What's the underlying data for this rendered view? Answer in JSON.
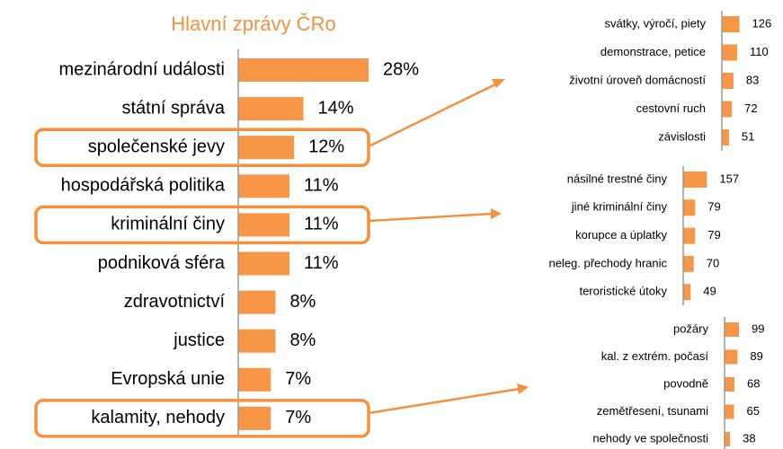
{
  "chart_data": [
    {
      "type": "bar",
      "title": "Hlavní zprávy ČRo",
      "categories": [
        "mezinárodní události",
        "státní správa",
        "společenské jevy",
        "hospodářská politika",
        "kriminální činy",
        "podniková sféra",
        "zdravotnictví",
        "justice",
        "Evropská unie",
        "kalamity, nehody"
      ],
      "values": [
        28,
        14,
        12,
        11,
        11,
        11,
        8,
        8,
        7,
        7
      ],
      "value_labels": [
        "28%",
        "14%",
        "12%",
        "11%",
        "11%",
        "11%",
        "8%",
        "8%",
        "7%",
        "7%"
      ],
      "color": "#f79646",
      "highlight": [
        2,
        4,
        9
      ]
    },
    {
      "type": "bar",
      "categories": [
        "svátky, výročí, piety",
        "demonstrace, petice",
        "životní úroveň domácností",
        "cestovní ruch",
        "závislosti"
      ],
      "values": [
        126,
        110,
        83,
        72,
        51
      ],
      "color": "#f79646"
    },
    {
      "type": "bar",
      "categories": [
        "násilné trestné činy",
        "jiné kriminální činy",
        "korupce a úplatky",
        "neleg. přechody hranic",
        "teroristické útoky"
      ],
      "values": [
        157,
        79,
        79,
        70,
        49
      ],
      "color": "#f79646"
    },
    {
      "type": "bar",
      "categories": [
        "požáry",
        "kal. z extrém. počasí",
        "povodně",
        "zemětřesení, tsunami",
        "nehody ve společnosti"
      ],
      "values": [
        99,
        89,
        68,
        65,
        38
      ],
      "color": "#f79646"
    }
  ]
}
